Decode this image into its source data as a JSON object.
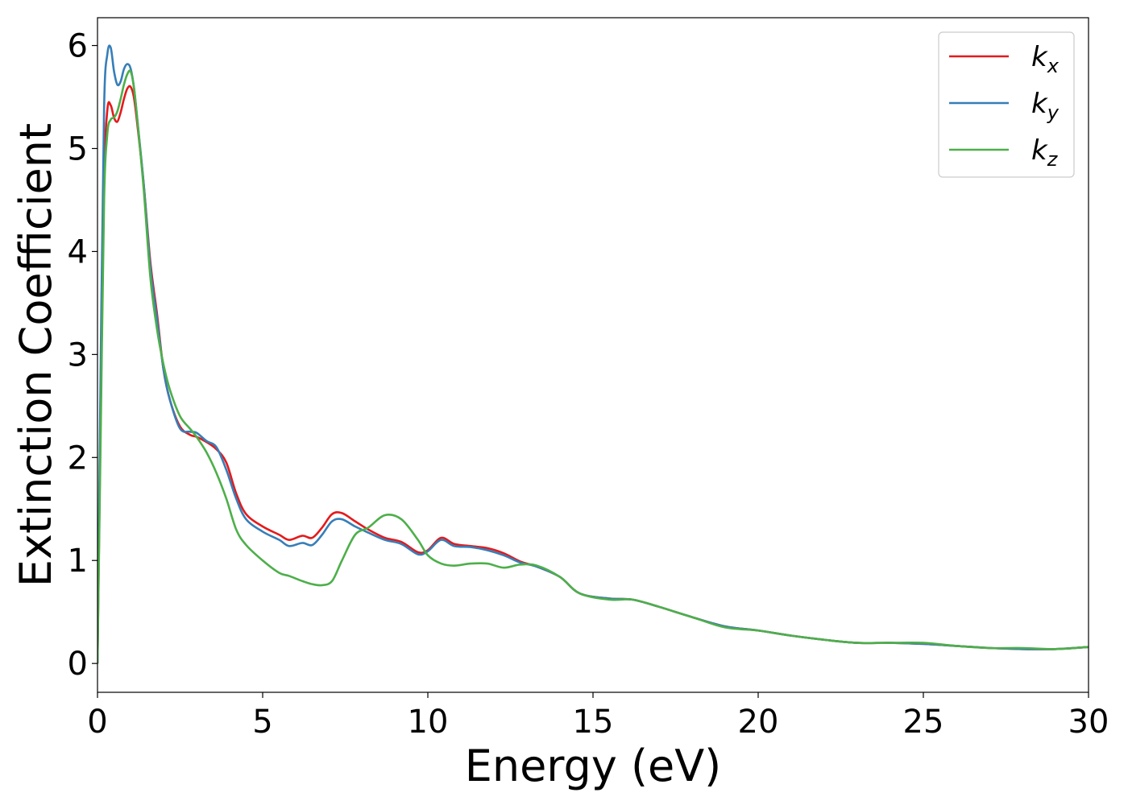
{
  "chart_data": {
    "type": "line",
    "xlabel": "Energy (eV)",
    "ylabel": "Extinction Coefficient",
    "xlim": [
      0,
      30
    ],
    "ylim": [
      -0.28,
      6.27
    ],
    "xticks": [
      0,
      5,
      10,
      15,
      20,
      25,
      30
    ],
    "yticks": [
      0,
      1,
      2,
      3,
      4,
      5,
      6
    ],
    "grid": false,
    "legend_position": "top-right",
    "series": [
      {
        "name": "k_x",
        "label_base": "k",
        "label_sub": "x",
        "color": "#e41a1c",
        "x": [
          0,
          0.1,
          0.2,
          0.3,
          0.4,
          0.5,
          0.6,
          0.7,
          0.8,
          0.9,
          1.0,
          1.1,
          1.2,
          1.4,
          1.6,
          1.8,
          2.0,
          2.2,
          2.5,
          2.8,
          3.0,
          3.3,
          3.6,
          3.9,
          4.2,
          4.5,
          5.0,
          5.5,
          5.8,
          6.2,
          6.5,
          6.8,
          7.1,
          7.4,
          7.8,
          8.2,
          8.7,
          9.2,
          9.7,
          10.0,
          10.4,
          10.8,
          11.3,
          11.8,
          12.3,
          12.8,
          13.3,
          14.0,
          14.6,
          15.5,
          16.2,
          17.0,
          18.0,
          19.0,
          20.0,
          21.0,
          22.0,
          23.0,
          24.0,
          25.0,
          26.0,
          27.0,
          28.0,
          29.0,
          30.0
        ],
        "y": [
          0.0,
          2.5,
          4.7,
          5.38,
          5.42,
          5.3,
          5.26,
          5.35,
          5.48,
          5.58,
          5.6,
          5.5,
          5.25,
          4.65,
          3.9,
          3.4,
          2.85,
          2.55,
          2.3,
          2.22,
          2.2,
          2.15,
          2.08,
          1.95,
          1.65,
          1.45,
          1.33,
          1.25,
          1.2,
          1.24,
          1.22,
          1.32,
          1.45,
          1.46,
          1.38,
          1.3,
          1.22,
          1.18,
          1.08,
          1.1,
          1.22,
          1.16,
          1.14,
          1.12,
          1.07,
          0.99,
          0.94,
          0.84,
          0.68,
          0.63,
          0.62,
          0.55,
          0.45,
          0.36,
          0.32,
          0.27,
          0.23,
          0.2,
          0.2,
          0.19,
          0.17,
          0.15,
          0.14,
          0.14,
          0.16
        ]
      },
      {
        "name": "k_y",
        "label_base": "k",
        "label_sub": "y",
        "color": "#377eb8",
        "x": [
          0,
          0.1,
          0.2,
          0.3,
          0.4,
          0.5,
          0.6,
          0.7,
          0.8,
          0.9,
          1.0,
          1.1,
          1.2,
          1.4,
          1.6,
          1.8,
          2.0,
          2.2,
          2.5,
          2.8,
          3.0,
          3.3,
          3.6,
          3.9,
          4.2,
          4.5,
          5.0,
          5.5,
          5.8,
          6.2,
          6.5,
          6.8,
          7.1,
          7.4,
          7.8,
          8.2,
          8.7,
          9.2,
          9.7,
          10.0,
          10.4,
          10.8,
          11.3,
          11.8,
          12.3,
          12.8,
          13.3,
          14.0,
          14.6,
          15.5,
          16.2,
          17.0,
          18.0,
          19.0,
          20.0,
          21.0,
          22.0,
          23.0,
          24.0,
          25.0,
          26.0,
          27.0,
          28.0,
          29.0,
          30.0
        ],
        "y": [
          0.0,
          3.0,
          5.4,
          5.92,
          5.98,
          5.75,
          5.62,
          5.65,
          5.77,
          5.82,
          5.78,
          5.6,
          5.3,
          4.65,
          3.85,
          3.35,
          2.85,
          2.55,
          2.28,
          2.25,
          2.24,
          2.16,
          2.1,
          1.88,
          1.6,
          1.4,
          1.28,
          1.2,
          1.14,
          1.17,
          1.15,
          1.25,
          1.38,
          1.4,
          1.33,
          1.27,
          1.2,
          1.16,
          1.06,
          1.09,
          1.2,
          1.14,
          1.13,
          1.1,
          1.05,
          0.98,
          0.94,
          0.84,
          0.68,
          0.63,
          0.62,
          0.55,
          0.45,
          0.36,
          0.32,
          0.27,
          0.23,
          0.2,
          0.2,
          0.19,
          0.17,
          0.15,
          0.14,
          0.14,
          0.16
        ]
      },
      {
        "name": "k_z",
        "label_base": "k",
        "label_sub": "z",
        "color": "#4daf4a",
        "x": [
          0,
          0.1,
          0.2,
          0.3,
          0.4,
          0.5,
          0.6,
          0.7,
          0.8,
          0.9,
          1.0,
          1.1,
          1.2,
          1.4,
          1.6,
          1.8,
          2.0,
          2.2,
          2.5,
          2.8,
          3.0,
          3.3,
          3.6,
          3.9,
          4.2,
          4.5,
          5.0,
          5.5,
          5.8,
          6.2,
          6.5,
          6.8,
          7.1,
          7.4,
          7.8,
          8.2,
          8.7,
          9.2,
          9.7,
          10.0,
          10.4,
          10.8,
          11.3,
          11.8,
          12.3,
          12.8,
          13.3,
          14.0,
          14.6,
          15.5,
          16.2,
          17.0,
          18.0,
          19.0,
          20.0,
          21.0,
          22.0,
          23.0,
          24.0,
          25.0,
          26.0,
          27.0,
          28.0,
          29.0,
          30.0
        ],
        "y": [
          0.0,
          2.3,
          4.5,
          5.15,
          5.28,
          5.3,
          5.36,
          5.48,
          5.62,
          5.72,
          5.75,
          5.6,
          5.3,
          4.6,
          3.75,
          3.25,
          2.9,
          2.65,
          2.4,
          2.28,
          2.2,
          2.05,
          1.85,
          1.6,
          1.3,
          1.15,
          1.0,
          0.88,
          0.85,
          0.8,
          0.77,
          0.76,
          0.8,
          1.0,
          1.25,
          1.32,
          1.44,
          1.4,
          1.2,
          1.05,
          0.97,
          0.95,
          0.97,
          0.97,
          0.93,
          0.96,
          0.95,
          0.84,
          0.68,
          0.62,
          0.62,
          0.55,
          0.45,
          0.35,
          0.32,
          0.27,
          0.23,
          0.2,
          0.2,
          0.2,
          0.17,
          0.15,
          0.15,
          0.14,
          0.16
        ]
      }
    ]
  }
}
